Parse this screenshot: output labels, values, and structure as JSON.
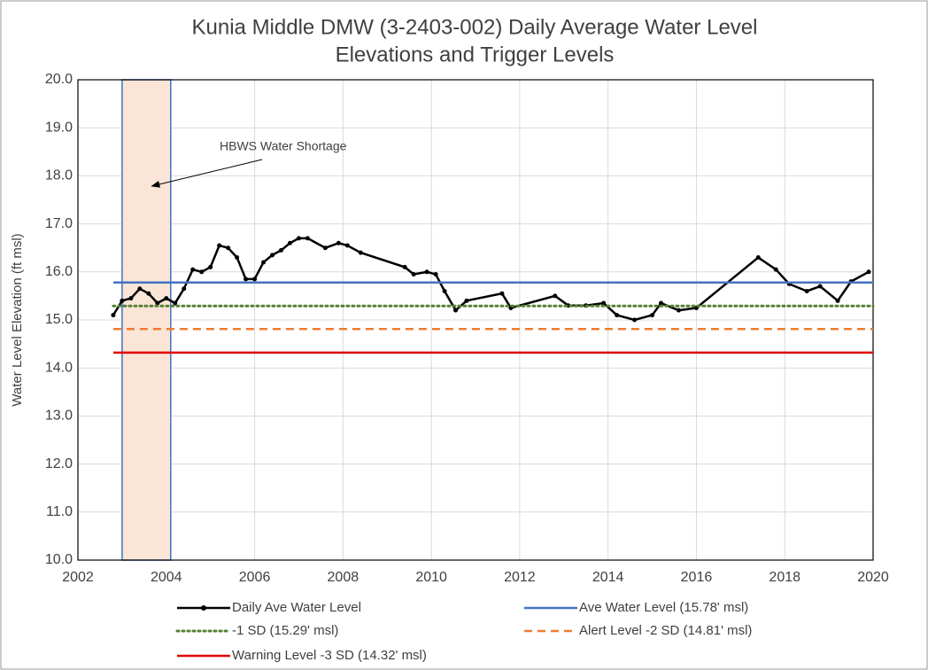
{
  "chart_data": {
    "type": "line",
    "title": [
      "Kunia Middle DMW (3-2403-002) Daily Average Water Level",
      "Elevations and Trigger Levels"
    ],
    "y_label": "Water Level Elevation (ft msl)",
    "xlim": [
      2002,
      2020
    ],
    "xticks": [
      2002,
      2004,
      2006,
      2008,
      2010,
      2012,
      2014,
      2016,
      2018,
      2020
    ],
    "ylim": [
      10,
      20
    ],
    "yticks": [
      {
        "value": 10,
        "label": "10.0"
      },
      {
        "value": 11,
        "label": "11.0"
      },
      {
        "value": 12,
        "label": "12.0"
      },
      {
        "value": 13,
        "label": "13.0"
      },
      {
        "value": 14,
        "label": "14.0"
      },
      {
        "value": 15,
        "label": "15.0"
      },
      {
        "value": 16,
        "label": "16.0"
      },
      {
        "value": 17,
        "label": "17.0"
      },
      {
        "value": 18,
        "label": "18.0"
      },
      {
        "value": 19,
        "label": "19.0"
      },
      {
        "value": 20,
        "label": "20.0"
      }
    ],
    "grid": true,
    "shaded_region": {
      "label": "HBWS Water Shortage",
      "xrange": [
        2003.0,
        2004.1
      ],
      "color": "#fbe5d6",
      "edge_color": "#4472c4"
    },
    "series": [
      {
        "name": "Daily Ave Water Level",
        "color": "#000000",
        "style": "solid-markers",
        "x": [
          2002.8,
          2003.0,
          2003.2,
          2003.4,
          2003.6,
          2003.8,
          2004.0,
          2004.2,
          2004.4,
          2004.6,
          2004.8,
          2005.0,
          2005.2,
          2005.4,
          2005.6,
          2005.8,
          2006.0,
          2006.2,
          2006.4,
          2006.6,
          2006.8,
          2007.0,
          2007.2,
          2007.6,
          2007.9,
          2008.1,
          2008.4,
          2009.4,
          2009.6,
          2009.9,
          2010.1,
          2010.3,
          2010.55,
          2010.8,
          2011.6,
          2011.8,
          2012.8,
          2013.1,
          2013.5,
          2013.9,
          2014.2,
          2014.6,
          2015.0,
          2015.2,
          2015.6,
          2016.0,
          2017.4,
          2017.8,
          2018.1,
          2018.5,
          2018.8,
          2019.2,
          2019.5,
          2019.9
        ],
        "values": [
          15.1,
          15.4,
          15.45,
          15.65,
          15.55,
          15.35,
          15.45,
          15.35,
          15.65,
          16.05,
          16.0,
          16.1,
          16.55,
          16.5,
          16.3,
          15.85,
          15.85,
          16.2,
          16.35,
          16.45,
          16.6,
          16.7,
          16.7,
          16.5,
          16.6,
          16.55,
          16.4,
          16.1,
          15.95,
          16.0,
          15.95,
          15.6,
          15.2,
          15.4,
          15.55,
          15.25,
          15.5,
          15.3,
          15.3,
          15.35,
          15.1,
          15.0,
          15.1,
          15.35,
          15.2,
          15.25,
          16.3,
          16.05,
          15.75,
          15.6,
          15.7,
          15.4,
          15.8,
          16.0
        ]
      },
      {
        "name": "Ave Water Level  (15.78' msl)",
        "color": "#4472c4",
        "style": "solid",
        "x": [
          2002.8,
          2020
        ],
        "values": [
          15.78,
          15.78
        ]
      },
      {
        "name": "-1 SD (15.29' msl)",
        "color": "#548235",
        "style": "dotted",
        "x": [
          2002.8,
          2020
        ],
        "values": [
          15.29,
          15.29
        ]
      },
      {
        "name": "Alert Level -2 SD (14.81' msl)",
        "color": "#ed7d31",
        "style": "dashed",
        "x": [
          2002.8,
          2020
        ],
        "values": [
          14.81,
          14.81
        ]
      },
      {
        "name": "Warning Level -3 SD (14.32' msl)",
        "color": "#e00000",
        "style": "solid",
        "x": [
          2002.8,
          2020
        ],
        "values": [
          14.32,
          14.32
        ]
      }
    ]
  }
}
